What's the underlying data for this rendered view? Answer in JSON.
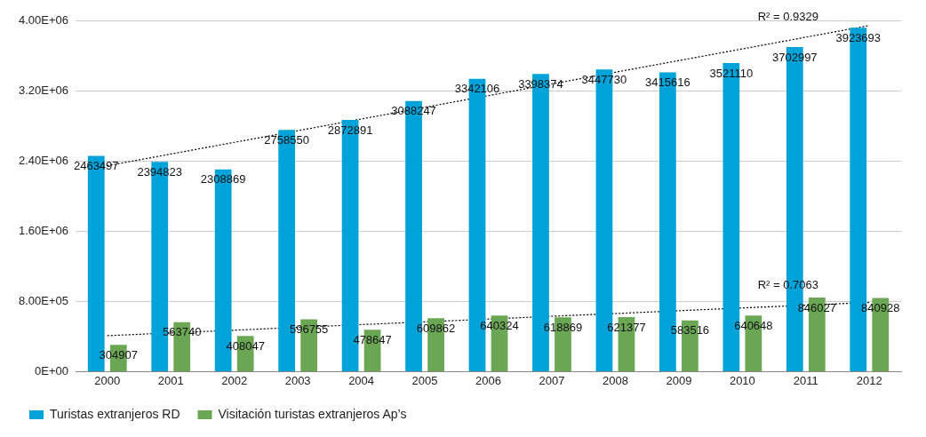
{
  "chart_data": {
    "type": "bar",
    "categories": [
      "2000",
      "2001",
      "2002",
      "2003",
      "2004",
      "2005",
      "2006",
      "2007",
      "2008",
      "2009",
      "2010",
      "2011",
      "2012"
    ],
    "series": [
      {
        "name": "Turistas extranjeros RD",
        "color": "#00a3d9",
        "values": [
          2463497,
          2394823,
          2308869,
          2758550,
          2872891,
          3088247,
          3342106,
          3398374,
          3447730,
          3415616,
          3521110,
          3702997,
          3923693
        ],
        "value_labels": [
          "2463497",
          "2394823",
          "2308869",
          "2758550",
          "2872891",
          "3088247",
          "3342106",
          "3398374",
          "3447730",
          "3415616",
          "3521110",
          "3702997",
          "3923693"
        ]
      },
      {
        "name": "Visitación turistas extranjeros Ap’s",
        "color": "#6aa653",
        "values": [
          304907,
          563740,
          408047,
          596755,
          478647,
          609862,
          640324,
          618869,
          621377,
          583516,
          640648,
          846027,
          840928
        ],
        "value_labels": [
          "304907",
          "563740",
          "408047",
          "596755",
          "478647",
          "609862",
          "640324",
          "618869",
          "621377",
          "583516",
          "640648",
          "846027",
          "840928"
        ]
      },
      {
        "type": "line",
        "color": "#000000",
        "line_style": "dotted",
        "values": [
          2350000,
          2483000,
          2617000,
          2750000,
          2883000,
          3017000,
          3150000,
          3283000,
          3417000,
          3550000,
          3683000,
          3817000,
          3950000
        ]
      },
      {
        "type": "line",
        "color": "#000000",
        "line_style": "dotted",
        "values": [
          410000,
          442000,
          473000,
          505000,
          537000,
          568000,
          600000,
          632000,
          663000,
          695000,
          727000,
          758000,
          790000
        ]
      }
    ],
    "ylim": [
      0,
      4000000
    ],
    "yticks": [
      {
        "value": 0,
        "label": "0E+00"
      },
      {
        "value": 800000,
        "label": "8.00E+05"
      },
      {
        "value": 1600000,
        "label": "1.60E+06"
      },
      {
        "value": 2400000,
        "label": "2.40E+06"
      },
      {
        "value": 3200000,
        "label": "3.20E+06"
      },
      {
        "value": 4000000,
        "label": "4.00E+06"
      }
    ],
    "grid": "y",
    "legend": "bottom",
    "annotations": [
      "R² = 0.9329",
      "R² = 0.7063"
    ]
  }
}
